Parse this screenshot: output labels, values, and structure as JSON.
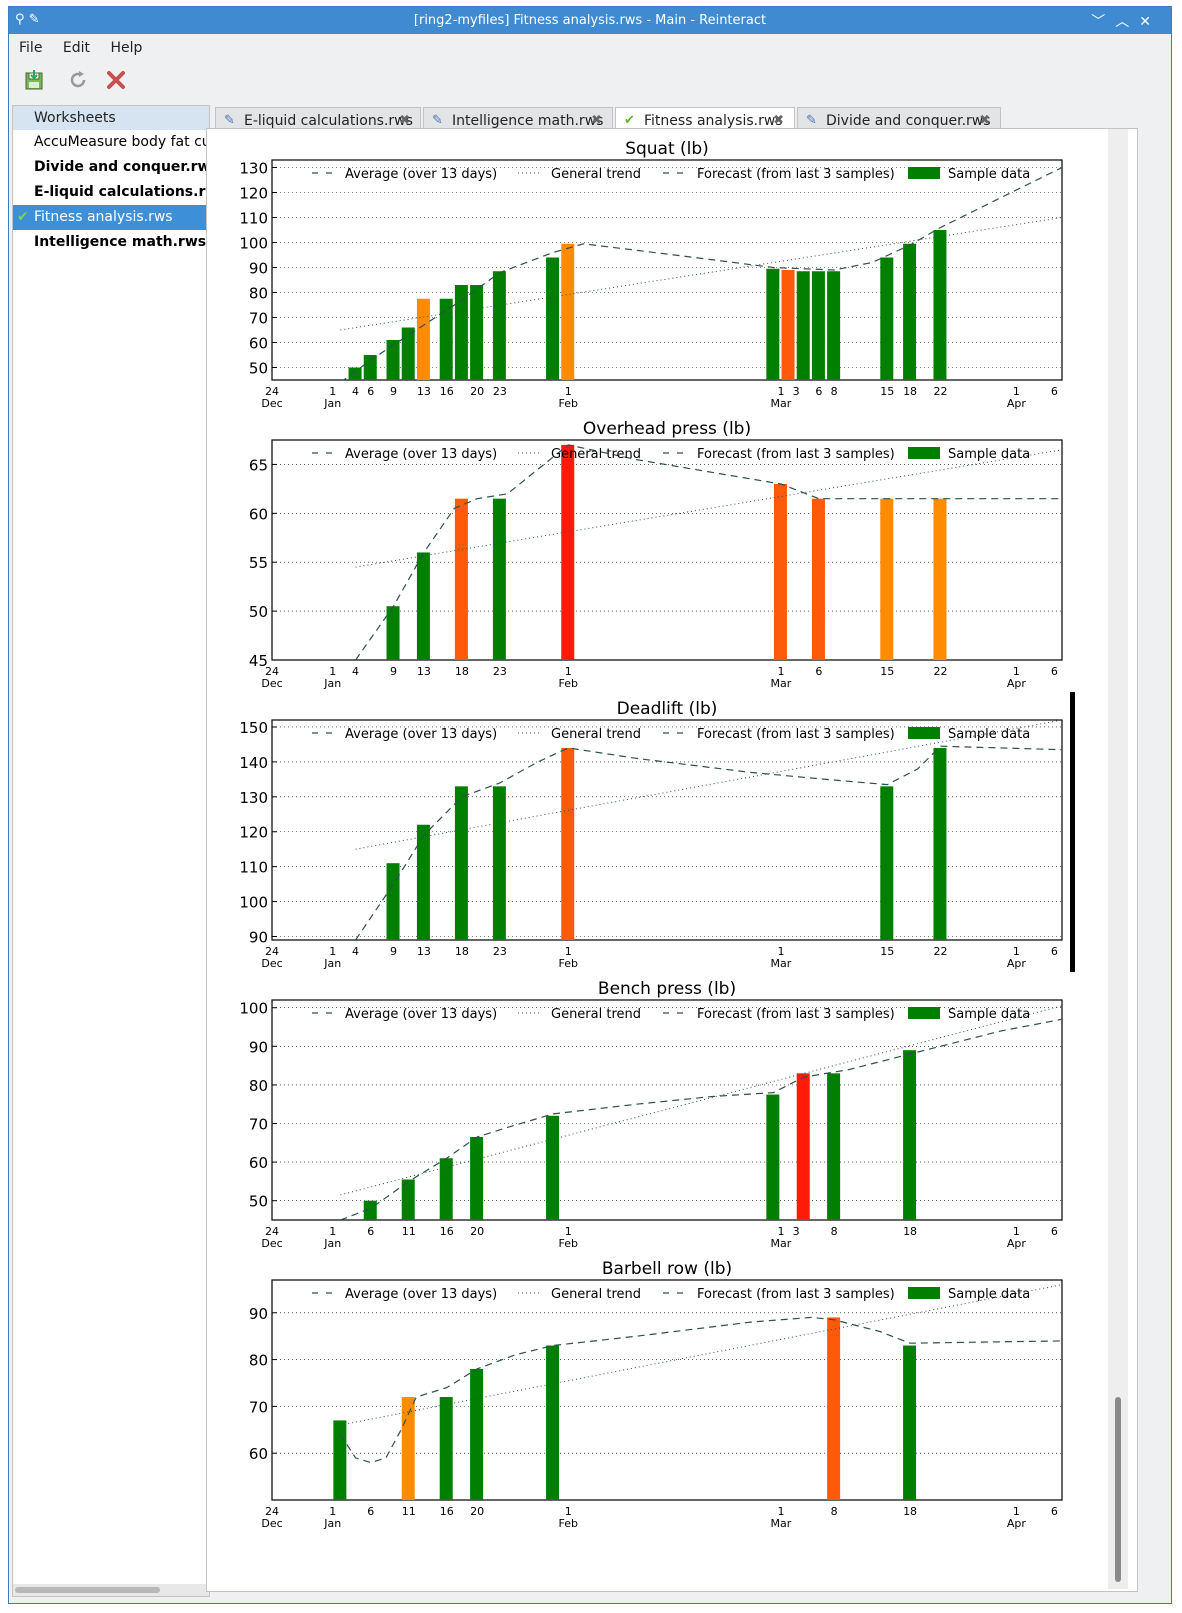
{
  "window": {
    "title": "[ring2-myfiles] Fitness analysis.rws - Main - Reinteract",
    "controls": [
      "﹀",
      "︿",
      "✕"
    ]
  },
  "menu": [
    "File",
    "Edit",
    "Help"
  ],
  "toolbar": {
    "icons": [
      "save-icon",
      "refresh-icon",
      "stop-icon"
    ]
  },
  "sidebar": {
    "header": "Worksheets",
    "items": [
      {
        "label": "AccuMeasure body fat curve",
        "bold": false,
        "selected": false
      },
      {
        "label": "Divide and conquer.rws",
        "bold": true,
        "selected": false
      },
      {
        "label": "E-liquid calculations.rws",
        "bold": true,
        "selected": false
      },
      {
        "label": "Fitness analysis.rws",
        "bold": false,
        "selected": true
      },
      {
        "label": "Intelligence math.rws",
        "bold": true,
        "selected": false
      }
    ]
  },
  "tabs": [
    {
      "label": "E-liquid calculations.rws",
      "active": false
    },
    {
      "label": "Intelligence math.rws",
      "active": false
    },
    {
      "label": "Fitness analysis.rws",
      "active": true
    },
    {
      "label": "Divide and conquer.rws",
      "active": false
    }
  ],
  "legend": [
    "Average (over 13 days)",
    "General trend",
    "Forecast (from last 3 samples)",
    "Sample data"
  ],
  "colors": {
    "green": "#007f00",
    "orange": "#ff8c00",
    "orangered": "#ff5a0a",
    "red": "#ff1a0a",
    "line": "#2f4f4f"
  },
  "xaxis": {
    "range_days": [
      -8,
      96
    ],
    "ticks": [
      {
        "d": -8,
        "l1": "24",
        "l2": "Dec"
      },
      {
        "d": 0,
        "l1": "1",
        "l2": "Jan"
      },
      {
        "d": 31,
        "l1": "1",
        "l2": "Feb"
      },
      {
        "d": 59,
        "l1": "1",
        "l2": "Mar"
      },
      {
        "d": 90,
        "l1": "1",
        "l2": "Apr"
      },
      {
        "d": 95,
        "l1": "6",
        "l2": ""
      }
    ]
  },
  "chart_data": [
    {
      "type": "bar",
      "title": "Squat (lb)",
      "ylim": [
        45,
        133
      ],
      "yticks": [
        50,
        60,
        70,
        80,
        90,
        100,
        110,
        120,
        130
      ],
      "extra_xticks": [
        "4",
        "6",
        "9",
        "13",
        "16",
        "20",
        "23",
        "3",
        "6",
        "8",
        "15",
        "18",
        "22"
      ],
      "extra_xtick_days": [
        3,
        5,
        8,
        12,
        15,
        19,
        22,
        61,
        64,
        66,
        73,
        76,
        80
      ],
      "bars": [
        {
          "day": 3,
          "value": 50,
          "color": "green"
        },
        {
          "day": 5,
          "value": 55,
          "color": "green"
        },
        {
          "day": 8,
          "value": 61,
          "color": "green"
        },
        {
          "day": 10,
          "value": 66,
          "color": "green"
        },
        {
          "day": 12,
          "value": 77.5,
          "color": "orange"
        },
        {
          "day": 15,
          "value": 77.5,
          "color": "green"
        },
        {
          "day": 17,
          "value": 83,
          "color": "green"
        },
        {
          "day": 19,
          "value": 83,
          "color": "green"
        },
        {
          "day": 22,
          "value": 88.5,
          "color": "green"
        },
        {
          "day": 29,
          "value": 94,
          "color": "green"
        },
        {
          "day": 31,
          "value": 99.5,
          "color": "orange"
        },
        {
          "day": 58,
          "value": 89.5,
          "color": "green"
        },
        {
          "day": 60,
          "value": 89,
          "color": "orangered"
        },
        {
          "day": 62,
          "value": 88.5,
          "color": "green"
        },
        {
          "day": 64,
          "value": 88.5,
          "color": "green"
        },
        {
          "day": 66,
          "value": 88.5,
          "color": "green"
        },
        {
          "day": 73,
          "value": 94,
          "color": "green"
        },
        {
          "day": 76,
          "value": 99.5,
          "color": "green"
        },
        {
          "day": 80,
          "value": 105,
          "color": "green"
        }
      ],
      "average": [
        [
          1,
          44
        ],
        [
          5,
          53
        ],
        [
          9,
          61
        ],
        [
          13,
          69
        ],
        [
          17,
          77
        ],
        [
          22,
          88
        ],
        [
          29,
          96
        ],
        [
          33,
          99.5
        ],
        [
          45,
          95
        ],
        [
          58,
          90
        ],
        [
          66,
          89
        ],
        [
          71,
          92
        ],
        [
          76,
          99
        ],
        [
          80,
          106
        ],
        [
          88,
          118
        ],
        [
          96,
          130
        ]
      ],
      "trend": [
        [
          1,
          65
        ],
        [
          96,
          110
        ]
      ]
    },
    {
      "type": "bar",
      "title": "Overhead press (lb)",
      "ylim": [
        45,
        67.5
      ],
      "yticks": [
        45,
        50,
        55,
        60,
        65
      ],
      "extra_xticks": [
        "4",
        "9",
        "13",
        "18",
        "23",
        "6",
        "15",
        "22"
      ],
      "extra_xtick_days": [
        3,
        8,
        12,
        17,
        22,
        64,
        73,
        80
      ],
      "bars": [
        {
          "day": 8,
          "value": 50.5,
          "color": "green"
        },
        {
          "day": 12,
          "value": 56,
          "color": "green"
        },
        {
          "day": 17,
          "value": 61.5,
          "color": "orangered"
        },
        {
          "day": 22,
          "value": 61.5,
          "color": "green"
        },
        {
          "day": 31,
          "value": 67,
          "color": "red"
        },
        {
          "day": 59,
          "value": 63,
          "color": "orangered"
        },
        {
          "day": 64,
          "value": 61.5,
          "color": "orangered"
        },
        {
          "day": 73,
          "value": 61.5,
          "color": "orange"
        },
        {
          "day": 80,
          "value": 61.5,
          "color": "orange"
        }
      ],
      "average": [
        [
          3,
          45
        ],
        [
          8,
          50.5
        ],
        [
          12,
          56
        ],
        [
          16,
          60.5
        ],
        [
          19,
          61.5
        ],
        [
          23,
          62
        ],
        [
          27,
          64.5
        ],
        [
          31,
          67
        ],
        [
          40,
          65.5
        ],
        [
          59,
          63
        ],
        [
          64,
          61.5
        ],
        [
          73,
          61.5
        ],
        [
          80,
          61.5
        ],
        [
          96,
          61.5
        ]
      ],
      "trend": [
        [
          3,
          54.5
        ],
        [
          96,
          66.5
        ]
      ]
    },
    {
      "type": "bar",
      "title": "Deadlift (lb)",
      "ylim": [
        89,
        152
      ],
      "yticks": [
        90,
        100,
        110,
        120,
        130,
        140,
        150
      ],
      "extra_xticks": [
        "4",
        "9",
        "13",
        "18",
        "23",
        "15",
        "22"
      ],
      "extra_xtick_days": [
        3,
        8,
        12,
        17,
        22,
        73,
        80
      ],
      "bars": [
        {
          "day": 8,
          "value": 111,
          "color": "green"
        },
        {
          "day": 12,
          "value": 122,
          "color": "green"
        },
        {
          "day": 17,
          "value": 133,
          "color": "green"
        },
        {
          "day": 22,
          "value": 133,
          "color": "green"
        },
        {
          "day": 31,
          "value": 144,
          "color": "orangered"
        },
        {
          "day": 73,
          "value": 133,
          "color": "green"
        },
        {
          "day": 80,
          "value": 144,
          "color": "green"
        }
      ],
      "average": [
        [
          3,
          89
        ],
        [
          8,
          105
        ],
        [
          12,
          119
        ],
        [
          17,
          130
        ],
        [
          22,
          134
        ],
        [
          27,
          140
        ],
        [
          31,
          144
        ],
        [
          40,
          141
        ],
        [
          55,
          137
        ],
        [
          65,
          135
        ],
        [
          73,
          133.5
        ],
        [
          77,
          138
        ],
        [
          80,
          144.5
        ],
        [
          96,
          143.5
        ]
      ],
      "trend": [
        [
          3,
          115
        ],
        [
          96,
          152
        ]
      ]
    },
    {
      "type": "bar",
      "title": "Bench press (lb)",
      "ylim": [
        45,
        102
      ],
      "yticks": [
        50,
        60,
        70,
        80,
        90,
        100
      ],
      "extra_xticks": [
        "6",
        "11",
        "16",
        "20",
        "3",
        "8",
        "18"
      ],
      "extra_xtick_days": [
        5,
        10,
        15,
        19,
        61,
        66,
        76
      ],
      "bars": [
        {
          "day": 5,
          "value": 50,
          "color": "green"
        },
        {
          "day": 10,
          "value": 55.5,
          "color": "green"
        },
        {
          "day": 15,
          "value": 61,
          "color": "green"
        },
        {
          "day": 19,
          "value": 66.5,
          "color": "green"
        },
        {
          "day": 29,
          "value": 72,
          "color": "green"
        },
        {
          "day": 58,
          "value": 77.5,
          "color": "green"
        },
        {
          "day": 62,
          "value": 83,
          "color": "red"
        },
        {
          "day": 66,
          "value": 83,
          "color": "green"
        },
        {
          "day": 76,
          "value": 89,
          "color": "green"
        }
      ],
      "average": [
        [
          1,
          45
        ],
        [
          5,
          48
        ],
        [
          10,
          55
        ],
        [
          15,
          61
        ],
        [
          19,
          66.5
        ],
        [
          23,
          69
        ],
        [
          29,
          72.5
        ],
        [
          40,
          75
        ],
        [
          50,
          77
        ],
        [
          58,
          78
        ],
        [
          62,
          82
        ],
        [
          68,
          84
        ],
        [
          76,
          88
        ],
        [
          88,
          94
        ],
        [
          96,
          97
        ]
      ],
      "trend": [
        [
          1,
          51.5
        ],
        [
          96,
          100.5
        ]
      ]
    },
    {
      "type": "bar",
      "title": "Barbell row (lb)",
      "ylim": [
        50,
        97
      ],
      "yticks": [
        60,
        70,
        80,
        90
      ],
      "extra_xticks": [
        "6",
        "11",
        "16",
        "20",
        "8",
        "18"
      ],
      "extra_xtick_days": [
        5,
        10,
        15,
        19,
        66,
        76
      ],
      "bars": [
        {
          "day": 1,
          "value": 67,
          "color": "green"
        },
        {
          "day": 10,
          "value": 72,
          "color": "orange"
        },
        {
          "day": 15,
          "value": 72,
          "color": "green"
        },
        {
          "day": 19,
          "value": 78,
          "color": "green"
        },
        {
          "day": 29,
          "value": 83,
          "color": "green"
        },
        {
          "day": 66,
          "value": 89,
          "color": "orangered"
        },
        {
          "day": 76,
          "value": 83,
          "color": "green"
        }
      ],
      "average": [
        [
          1,
          64
        ],
        [
          3,
          59
        ],
        [
          5,
          58
        ],
        [
          7,
          59
        ],
        [
          9,
          65
        ],
        [
          11,
          72
        ],
        [
          15,
          74
        ],
        [
          19,
          78
        ],
        [
          24,
          81
        ],
        [
          29,
          83
        ],
        [
          40,
          85
        ],
        [
          55,
          88
        ],
        [
          63,
          89
        ],
        [
          66,
          88.5
        ],
        [
          72,
          86
        ],
        [
          76,
          83.5
        ],
        [
          96,
          84
        ]
      ],
      "trend": [
        [
          1,
          66
        ],
        [
          96,
          96
        ]
      ]
    }
  ]
}
